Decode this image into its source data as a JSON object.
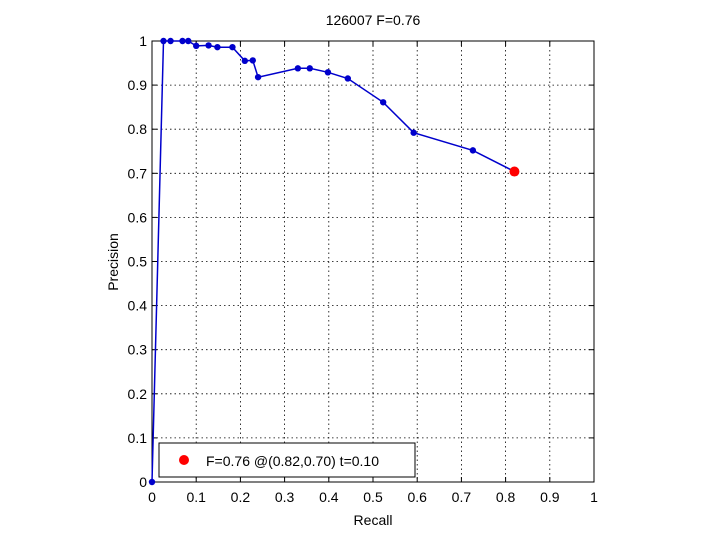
{
  "chart_data": {
    "type": "line",
    "title": "126007 F=0.76",
    "xlabel": "Recall",
    "ylabel": "Precision",
    "xlim": [
      0,
      1
    ],
    "ylim": [
      0,
      1
    ],
    "xticks": [
      0,
      0.1,
      0.2,
      0.3,
      0.4,
      0.5,
      0.6,
      0.7,
      0.8,
      0.9,
      1
    ],
    "yticks": [
      0,
      0.1,
      0.2,
      0.3,
      0.4,
      0.5,
      0.6,
      0.7,
      0.8,
      0.9,
      1
    ],
    "xtick_labels": [
      "0",
      "0.1",
      "0.2",
      "0.3",
      "0.4",
      "0.5",
      "0.6",
      "0.7",
      "0.8",
      "0.9",
      "1"
    ],
    "ytick_labels": [
      "0",
      "0.1",
      "0.2",
      "0.3",
      "0.4",
      "0.5",
      "0.6",
      "0.7",
      "0.8",
      "0.9",
      "1"
    ],
    "grid": true,
    "series": [
      {
        "color": "#0000cc",
        "x": [
          0,
          0.026,
          0.042,
          0.069,
          0.082,
          0.1,
          0.128,
          0.148,
          0.182,
          0.21,
          0.228,
          0.24,
          0.33,
          0.357,
          0.398,
          0.443,
          0.523,
          0.592,
          0.726,
          0.82
        ],
        "y": [
          0,
          1.0,
          1.0,
          1.0,
          1.0,
          0.989,
          0.99,
          0.986,
          0.986,
          0.955,
          0.956,
          0.918,
          0.938,
          0.938,
          0.929,
          0.915,
          0.861,
          0.792,
          0.752,
          0.704
        ]
      }
    ],
    "highlight": {
      "x": 0.82,
      "y": 0.704,
      "color": "#ff0000"
    },
    "legend": {
      "position": "bottom-left",
      "label": "F=0.76 @(0.82,0.70) t=0.10"
    }
  }
}
